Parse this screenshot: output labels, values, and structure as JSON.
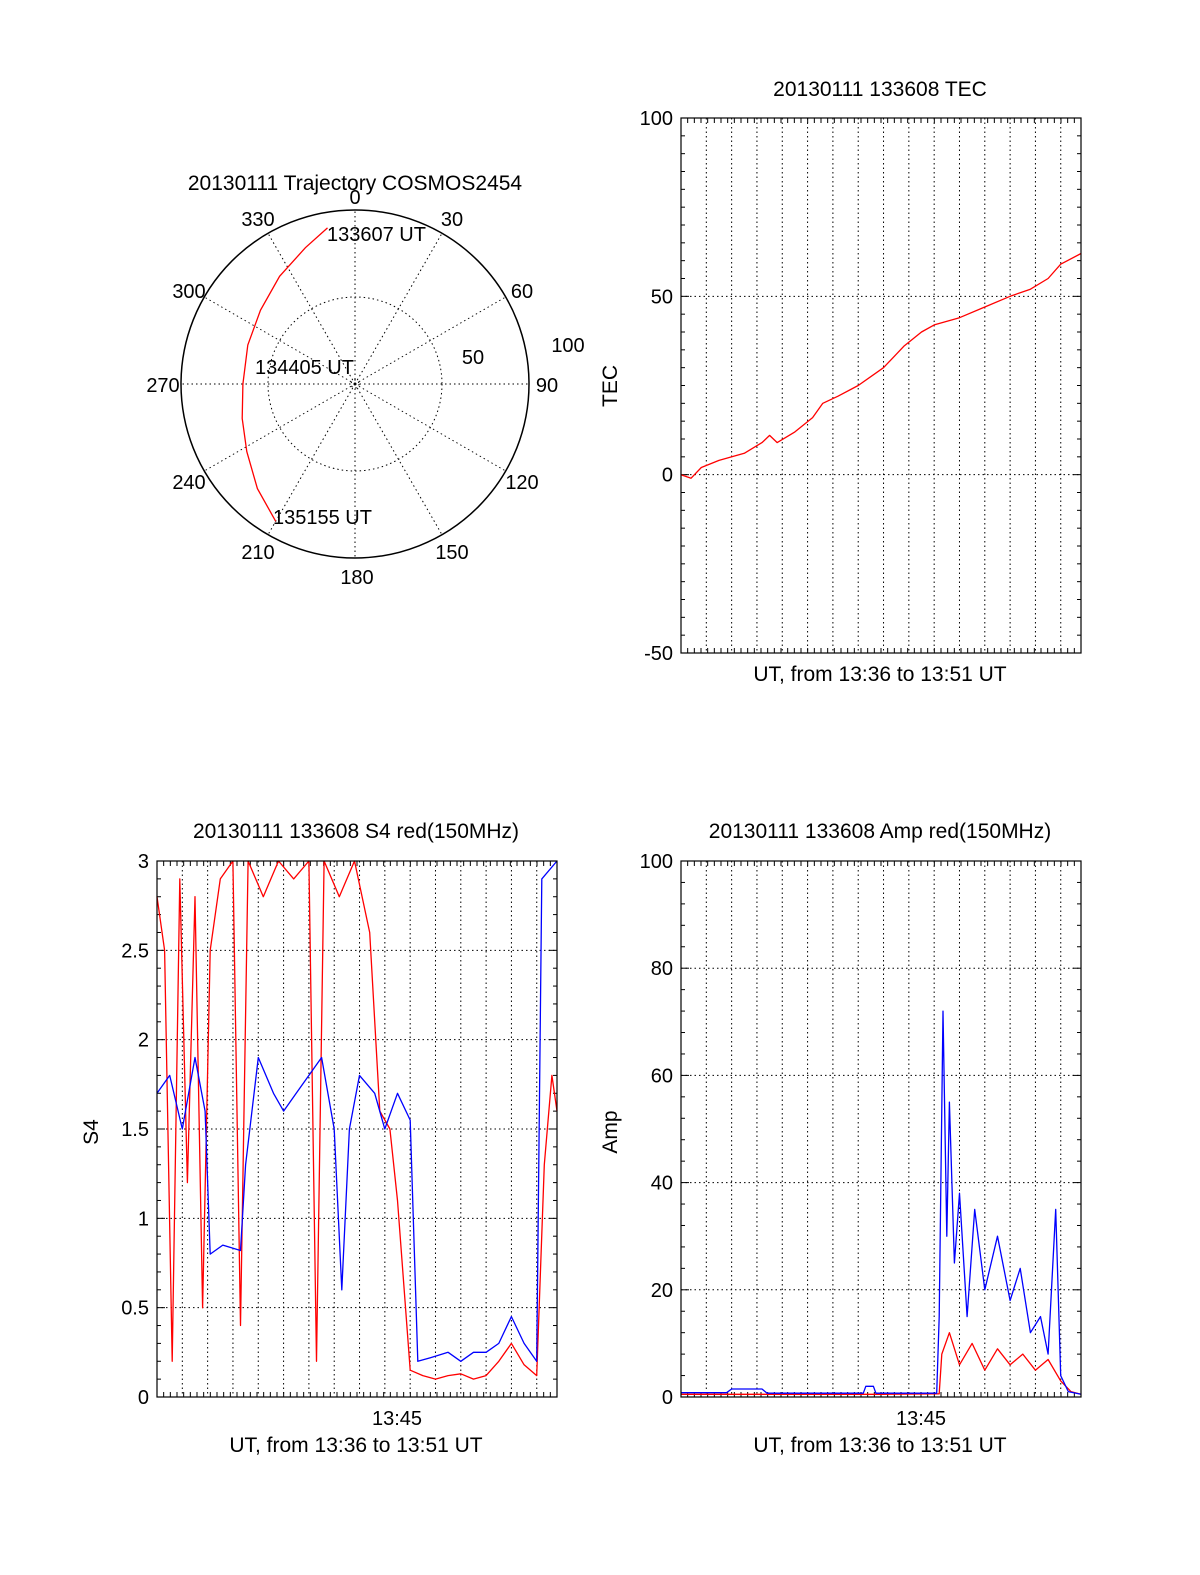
{
  "colors": {
    "red": "#ff0000",
    "blue": "#0000ff",
    "axis": "#000000"
  },
  "chart_data": [
    {
      "type": "scatter",
      "panel": "polar-trajectory",
      "title": "20130111 Trajectory COSMOS2454",
      "azimuth_labels": [
        "0",
        "30",
        "60",
        "90",
        "120",
        "150",
        "180",
        "210",
        "240",
        "270",
        "300",
        "330"
      ],
      "elevation_ring_labels": [
        "50",
        "100"
      ],
      "annotations": [
        "133607 UT",
        "134405 UT",
        "135155 UT"
      ],
      "series": [
        {
          "color": "red",
          "points": [
            {
              "az": 350,
              "zenith": 82
            },
            {
              "az": 340,
              "zenith": 75
            },
            {
              "az": 325,
              "zenith": 68
            },
            {
              "az": 308,
              "zenith": 62
            },
            {
              "az": 290,
              "zenith": 59
            },
            {
              "az": 270,
              "zenith": 58
            },
            {
              "az": 253,
              "zenith": 61
            },
            {
              "az": 238,
              "zenith": 66
            },
            {
              "az": 223,
              "zenith": 74
            },
            {
              "az": 210,
              "zenith": 82
            }
          ]
        }
      ]
    },
    {
      "type": "line",
      "panel": "tec",
      "title": "20130111 133608 TEC",
      "xlabel": "UT, from 13:36 to 13:51 UT",
      "ylabel": "TEC",
      "ylim": [
        -50,
        100
      ],
      "yticks": [
        "-50",
        "0",
        "50",
        "100"
      ],
      "xlim": [
        0,
        15.8
      ],
      "grid": true,
      "series": [
        {
          "color": "red",
          "points": [
            [
              0,
              0
            ],
            [
              0.4,
              -1
            ],
            [
              0.8,
              2
            ],
            [
              1.5,
              4
            ],
            [
              2.5,
              6
            ],
            [
              3.2,
              9
            ],
            [
              3.5,
              11
            ],
            [
              3.8,
              9
            ],
            [
              4.5,
              12
            ],
            [
              5.2,
              16
            ],
            [
              5.6,
              20
            ],
            [
              6.2,
              22
            ],
            [
              7,
              25
            ],
            [
              8,
              30
            ],
            [
              8.8,
              36
            ],
            [
              9.5,
              40
            ],
            [
              10,
              42
            ],
            [
              11,
              44
            ],
            [
              12,
              47
            ],
            [
              13,
              50
            ],
            [
              13.8,
              52
            ],
            [
              14.5,
              55
            ],
            [
              15,
              59
            ],
            [
              15.8,
              62
            ]
          ]
        }
      ]
    },
    {
      "type": "line",
      "panel": "s4",
      "title": "20130111 133608 S4 red(150MHz)",
      "xlabel": "UT, from 13:36 to 13:51 UT",
      "ylabel": "S4",
      "ylim": [
        0,
        3
      ],
      "yticks": [
        "0",
        "0.5",
        "1",
        "1.5",
        "2",
        "2.5",
        "3"
      ],
      "xlim": [
        0,
        15.8
      ],
      "xtick_label": "13:45",
      "grid": true,
      "series": [
        {
          "color": "red",
          "points": [
            [
              0,
              2.8
            ],
            [
              0.3,
              2.5
            ],
            [
              0.6,
              0.2
            ],
            [
              0.9,
              2.9
            ],
            [
              1.2,
              1.2
            ],
            [
              1.5,
              2.8
            ],
            [
              1.8,
              0.5
            ],
            [
              2.1,
              2.5
            ],
            [
              2.5,
              2.9
            ],
            [
              3,
              3
            ],
            [
              3.3,
              0.4
            ],
            [
              3.6,
              3
            ],
            [
              4.2,
              2.8
            ],
            [
              4.8,
              3
            ],
            [
              5.4,
              2.9
            ],
            [
              6,
              3
            ],
            [
              6.3,
              0.2
            ],
            [
              6.6,
              3
            ],
            [
              7.2,
              2.8
            ],
            [
              7.8,
              3
            ],
            [
              8.4,
              2.6
            ],
            [
              8.8,
              1.6
            ],
            [
              9.2,
              1.5
            ],
            [
              9.5,
              1.1
            ],
            [
              10,
              0.15
            ],
            [
              10.5,
              0.12
            ],
            [
              11,
              0.1
            ],
            [
              11.5,
              0.12
            ],
            [
              12,
              0.13
            ],
            [
              12.5,
              0.1
            ],
            [
              13,
              0.12
            ],
            [
              13.5,
              0.2
            ],
            [
              14,
              0.3
            ],
            [
              14.5,
              0.18
            ],
            [
              15,
              0.12
            ],
            [
              15.3,
              1.3
            ],
            [
              15.6,
              1.8
            ],
            [
              15.8,
              1.6
            ]
          ]
        },
        {
          "color": "blue",
          "points": [
            [
              0,
              1.7
            ],
            [
              0.5,
              1.8
            ],
            [
              1,
              1.5
            ],
            [
              1.5,
              1.9
            ],
            [
              1.9,
              1.6
            ],
            [
              2.1,
              0.8
            ],
            [
              2.6,
              0.85
            ],
            [
              3.3,
              0.82
            ],
            [
              3.5,
              1.3
            ],
            [
              4,
              1.9
            ],
            [
              4.6,
              1.7
            ],
            [
              5,
              1.6
            ],
            [
              5.5,
              1.7
            ],
            [
              6,
              1.8
            ],
            [
              6.5,
              1.9
            ],
            [
              7,
              1.5
            ],
            [
              7.3,
              0.6
            ],
            [
              7.6,
              1.5
            ],
            [
              8,
              1.8
            ],
            [
              8.6,
              1.7
            ],
            [
              9,
              1.5
            ],
            [
              9.5,
              1.7
            ],
            [
              10,
              1.55
            ],
            [
              10.3,
              0.2
            ],
            [
              10.8,
              0.22
            ],
            [
              11.5,
              0.25
            ],
            [
              12,
              0.2
            ],
            [
              12.5,
              0.25
            ],
            [
              13,
              0.25
            ],
            [
              13.5,
              0.3
            ],
            [
              14,
              0.45
            ],
            [
              14.5,
              0.3
            ],
            [
              15,
              0.2
            ],
            [
              15.2,
              2.9
            ],
            [
              15.8,
              3
            ]
          ]
        }
      ]
    },
    {
      "type": "line",
      "panel": "amp",
      "title": "20130111 133608 Amp red(150MHz)",
      "xlabel": "UT, from 13:36 to 13:51 UT",
      "ylabel": "Amp",
      "ylim": [
        0,
        100
      ],
      "yticks": [
        "0",
        "20",
        "40",
        "60",
        "80",
        "100"
      ],
      "xlim": [
        0,
        15.8
      ],
      "xtick_label": "13:45",
      "grid": true,
      "series": [
        {
          "color": "red",
          "points": [
            [
              0,
              0.5
            ],
            [
              4,
              0.5
            ],
            [
              8,
              0.5
            ],
            [
              10.2,
              0.6
            ],
            [
              10.3,
              8
            ],
            [
              10.6,
              12
            ],
            [
              11,
              6
            ],
            [
              11.5,
              10
            ],
            [
              12,
              5
            ],
            [
              12.5,
              9
            ],
            [
              13,
              6
            ],
            [
              13.5,
              8
            ],
            [
              14,
              5
            ],
            [
              14.5,
              7
            ],
            [
              15,
              3
            ],
            [
              15.4,
              1
            ],
            [
              15.8,
              0.5
            ]
          ]
        },
        {
          "color": "blue",
          "points": [
            [
              0,
              0.8
            ],
            [
              1.8,
              0.8
            ],
            [
              2,
              1.5
            ],
            [
              3.2,
              1.5
            ],
            [
              3.4,
              0.7
            ],
            [
              7.2,
              0.7
            ],
            [
              7.3,
              2
            ],
            [
              7.6,
              2
            ],
            [
              7.7,
              0.7
            ],
            [
              10.1,
              0.7
            ],
            [
              10.2,
              15
            ],
            [
              10.35,
              72
            ],
            [
              10.5,
              30
            ],
            [
              10.6,
              55
            ],
            [
              10.8,
              25
            ],
            [
              11,
              38
            ],
            [
              11.3,
              15
            ],
            [
              11.6,
              35
            ],
            [
              12,
              20
            ],
            [
              12.5,
              30
            ],
            [
              13,
              18
            ],
            [
              13.4,
              24
            ],
            [
              13.8,
              12
            ],
            [
              14.2,
              15
            ],
            [
              14.5,
              8
            ],
            [
              14.8,
              35
            ],
            [
              15,
              4
            ],
            [
              15.3,
              1
            ],
            [
              15.8,
              0.5
            ]
          ]
        }
      ]
    }
  ]
}
